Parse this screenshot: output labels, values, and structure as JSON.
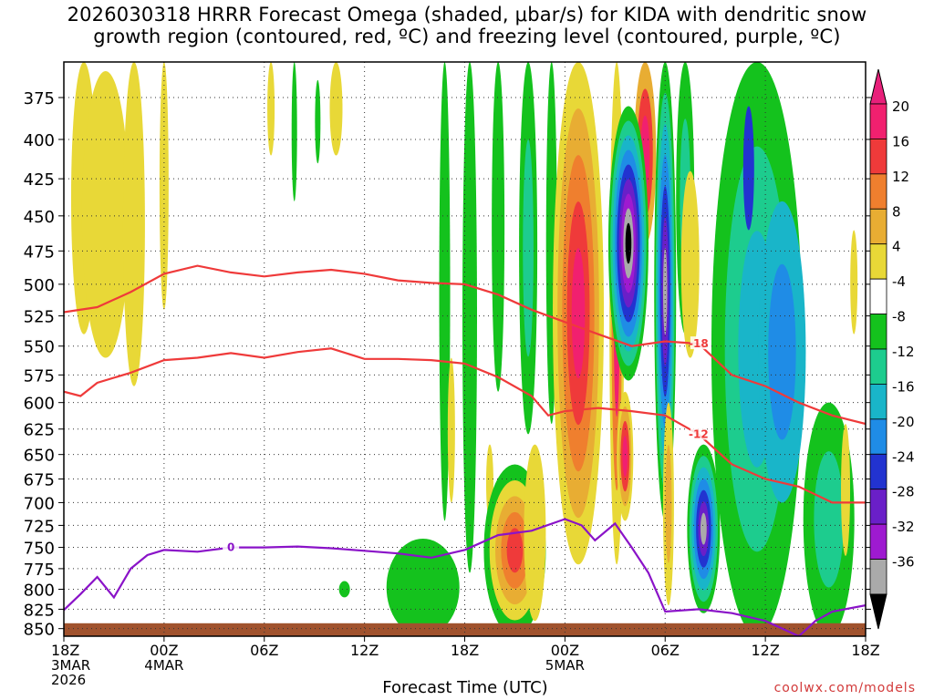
{
  "chart_data": {
    "type": "heatmap",
    "title_line1": "2026030318 HRRR Forecast Omega (shaded, μbar/s) for KIDA with dendritic snow",
    "title_line2": "growth region (contoured, red, ºC) and freezing level (contoured, purple, ºC)",
    "xlabel": "Forecast Time (UTC)",
    "ylabel": "",
    "y_axis": {
      "ticks": [
        375,
        400,
        425,
        450,
        475,
        500,
        525,
        550,
        575,
        600,
        625,
        650,
        675,
        700,
        725,
        750,
        775,
        800,
        825,
        850
      ],
      "range_hPa": [
        355,
        860
      ],
      "scale": "log"
    },
    "x_axis": {
      "range_hours": [
        0,
        48
      ],
      "ticks": [
        {
          "h": 0,
          "label": "18Z",
          "sub1": "3MAR",
          "sub2": "2026"
        },
        {
          "h": 6,
          "label": "00Z",
          "sub1": "4MAR",
          "sub2": ""
        },
        {
          "h": 12,
          "label": "06Z",
          "sub1": "",
          "sub2": ""
        },
        {
          "h": 18,
          "label": "12Z",
          "sub1": "",
          "sub2": ""
        },
        {
          "h": 24,
          "label": "18Z",
          "sub1": "",
          "sub2": ""
        },
        {
          "h": 30,
          "label": "00Z",
          "sub1": "5MAR",
          "sub2": ""
        },
        {
          "h": 36,
          "label": "06Z",
          "sub1": "",
          "sub2": ""
        },
        {
          "h": 42,
          "label": "12Z",
          "sub1": "",
          "sub2": ""
        },
        {
          "h": 48,
          "label": "18Z",
          "sub1": "",
          "sub2": ""
        }
      ]
    },
    "colorbar": {
      "labels": [
        "20",
        "16",
        "12",
        "8",
        "4",
        "-4",
        "-8",
        "-12",
        "-16",
        "-20",
        "-24",
        "-28",
        "-32",
        "-36"
      ],
      "colors": [
        "#f1206f",
        "#ef3a3a",
        "#ef7f2e",
        "#e8ad33",
        "#e8d837",
        "#ffffff",
        "#14c21d",
        "#1dcc8e",
        "#19b5c9",
        "#1f8ce6",
        "#2233d0",
        "#6a1fc8",
        "#9e1ad0",
        "#aaaaaa",
        "#000000"
      ],
      "top_color": "#e8207a",
      "bottom_color": "#000000"
    },
    "contours": [
      {
        "name": "dgz -18C",
        "label": "-18",
        "color": "#ef3a3a",
        "points": [
          [
            0,
            522
          ],
          [
            2,
            518
          ],
          [
            4,
            506
          ],
          [
            6,
            492
          ],
          [
            8,
            486
          ],
          [
            10,
            491
          ],
          [
            12,
            494
          ],
          [
            14,
            491
          ],
          [
            16,
            489
          ],
          [
            18,
            492
          ],
          [
            20,
            497
          ],
          [
            22,
            499
          ],
          [
            24,
            500
          ],
          [
            26,
            508
          ],
          [
            28,
            520
          ],
          [
            30,
            530
          ],
          [
            32,
            540
          ],
          [
            34,
            550
          ],
          [
            36,
            546
          ],
          [
            38,
            548
          ],
          [
            40,
            575
          ],
          [
            42,
            585
          ],
          [
            44,
            600
          ],
          [
            46,
            612
          ],
          [
            48,
            620
          ]
        ]
      },
      {
        "name": "dgz -12C",
        "label": "-12",
        "color": "#ef3a3a",
        "points": [
          [
            0,
            590
          ],
          [
            1,
            594
          ],
          [
            2,
            582
          ],
          [
            4,
            573
          ],
          [
            6,
            562
          ],
          [
            8,
            560
          ],
          [
            10,
            556
          ],
          [
            12,
            560
          ],
          [
            14,
            555
          ],
          [
            16,
            552
          ],
          [
            18,
            561
          ],
          [
            20,
            561
          ],
          [
            22,
            562
          ],
          [
            24,
            565
          ],
          [
            26,
            577
          ],
          [
            28,
            594
          ],
          [
            29,
            612
          ],
          [
            30,
            608
          ],
          [
            32,
            605
          ],
          [
            34,
            608
          ],
          [
            36,
            612
          ],
          [
            38,
            630
          ],
          [
            40,
            660
          ],
          [
            42,
            675
          ],
          [
            44,
            683
          ],
          [
            46,
            700
          ],
          [
            48,
            700
          ]
        ]
      },
      {
        "name": "freezing level 0C",
        "label": "0",
        "color": "#8a13c8",
        "points": [
          [
            0,
            826
          ],
          [
            1,
            806
          ],
          [
            2,
            785
          ],
          [
            3,
            810
          ],
          [
            4,
            775
          ],
          [
            5,
            759
          ],
          [
            6,
            753
          ],
          [
            8,
            755
          ],
          [
            10,
            750
          ],
          [
            12,
            750
          ],
          [
            14,
            749
          ],
          [
            16,
            751
          ],
          [
            18,
            754
          ],
          [
            20,
            757
          ],
          [
            22,
            762
          ],
          [
            24,
            753
          ],
          [
            26,
            736
          ],
          [
            28,
            731
          ],
          [
            30,
            718
          ],
          [
            31,
            725
          ],
          [
            31.8,
            742
          ],
          [
            33,
            723
          ],
          [
            34,
            750
          ],
          [
            35,
            780
          ],
          [
            36,
            828
          ],
          [
            38,
            825
          ],
          [
            40,
            830
          ],
          [
            42,
            840
          ],
          [
            44,
            860
          ],
          [
            45,
            840
          ],
          [
            46,
            828
          ],
          [
            48,
            820
          ]
        ]
      }
    ]
  },
  "footer": "coolwx.com/models"
}
